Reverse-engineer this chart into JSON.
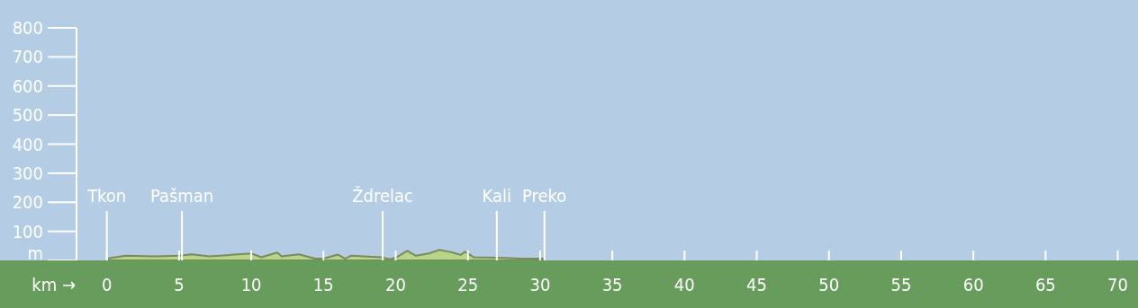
{
  "chart_data": {
    "type": "area",
    "xlabel": "km →",
    "xlim": [
      -2.1,
      71.4
    ],
    "xticks": [
      0,
      5,
      10,
      15,
      20,
      25,
      30,
      35,
      40,
      45,
      50,
      55,
      60,
      65,
      70
    ],
    "ylim": [
      0,
      800
    ],
    "yticks": [
      {
        "value": 0,
        "label": "m"
      },
      100,
      200,
      300,
      400,
      500,
      600,
      700,
      800
    ],
    "grid": false,
    "series": [
      {
        "color": "#b9d58a",
        "x": [
          0,
          1.3,
          3.4,
          5.0,
          5.9,
          7.1,
          8.6,
          10.0,
          10.7,
          11.8,
          12.1,
          13.3,
          14.4,
          15.0,
          16.0,
          16.5,
          16.9,
          19.0,
          19.6,
          20.0,
          20.8,
          21.4,
          22.3,
          23.0,
          23.8,
          24.5,
          24.8,
          25.4,
          27.1,
          28.7,
          30.2
        ],
        "values": [
          6,
          16,
          14,
          16,
          21,
          14,
          19,
          24,
          11,
          27,
          14,
          21,
          6,
          6,
          20,
          6,
          16,
          11,
          4,
          9,
          33,
          16,
          24,
          36,
          29,
          19,
          30,
          11,
          9,
          6,
          6
        ]
      }
    ],
    "ref_lines": [
      {
        "axis": "x",
        "value": 0,
        "label": "Tkon"
      },
      {
        "axis": "x",
        "value": 5.2,
        "label": "Pašman"
      },
      {
        "axis": "x",
        "value": 19.1,
        "label": "Ždrelac"
      },
      {
        "axis": "x",
        "value": 27.0,
        "label": "Kali"
      },
      {
        "axis": "x",
        "value": 30.3,
        "label": "Preko"
      }
    ]
  }
}
